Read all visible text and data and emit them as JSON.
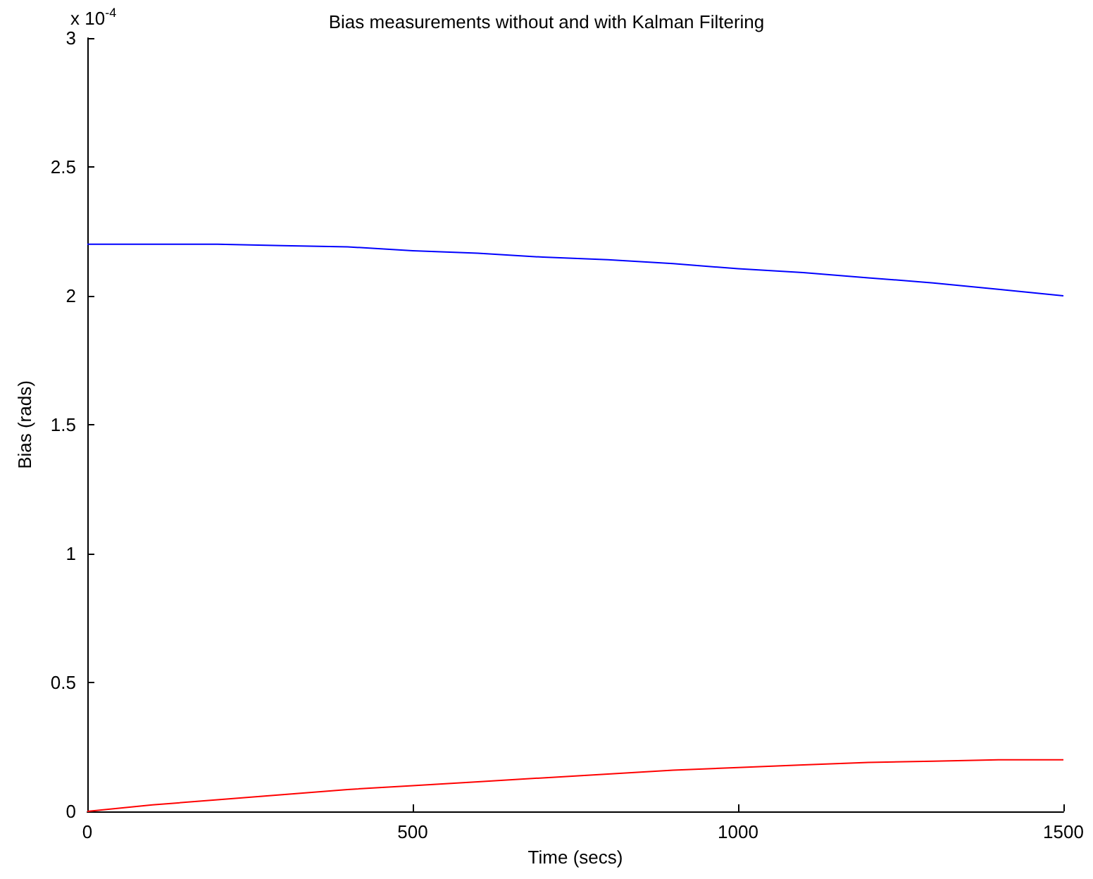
{
  "chart_data": {
    "type": "line",
    "title": "Bias measurements without and with Kalman Filtering",
    "xlabel": "Time (secs)",
    "ylabel": "Bias (rads)",
    "annotations": [
      "x 10$^{-4}$"
    ],
    "x": [
      0,
      100,
      200,
      300,
      400,
      500,
      600,
      700,
      800,
      900,
      1000,
      1100,
      1200,
      1300,
      1400,
      1500
    ],
    "series": [
      {
        "color": "#0000ff",
        "values": [
          2.2,
          2.2,
          2.2,
          2.195,
          2.19,
          2.175,
          2.165,
          2.15,
          2.14,
          2.125,
          2.105,
          2.09,
          2.07,
          2.05,
          2.025,
          2.0
        ]
      },
      {
        "color": "#ff0000",
        "values": [
          0,
          0.025,
          0.045,
          0.065,
          0.085,
          0.1,
          0.115,
          0.13,
          0.145,
          0.16,
          0.17,
          0.18,
          0.19,
          0.195,
          0.2,
          0.2
        ]
      }
    ],
    "xlim": [
      0,
      1500
    ],
    "xticks": [
      0,
      500,
      1000,
      1500
    ],
    "ylim": [
      0,
      3
    ],
    "yticks": [
      0,
      0.5,
      1,
      1.5,
      2,
      2.5,
      3
    ],
    "grid": false,
    "marker": "none",
    "line_style": "solid"
  }
}
